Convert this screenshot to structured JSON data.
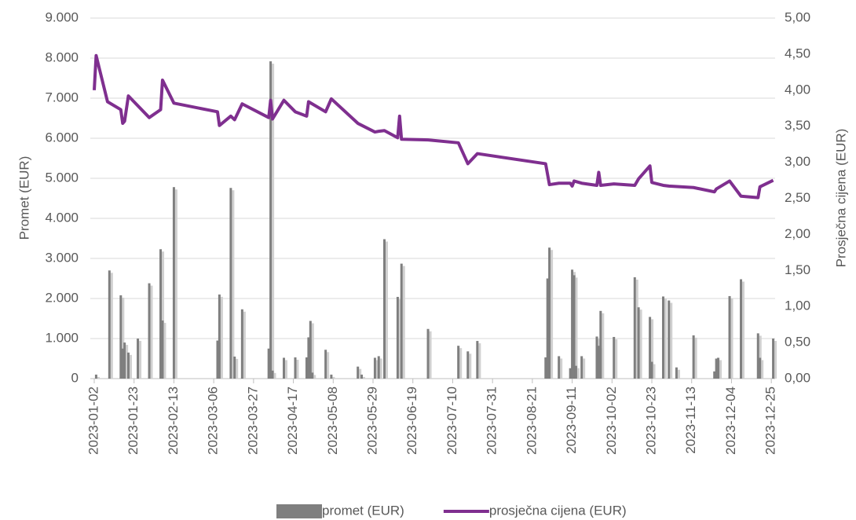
{
  "chart_data": {
    "type": "bar",
    "y_label": "Promet (EUR)",
    "y2_label": "Prosječna cijena (EUR)",
    "grid": true,
    "legend": "bottom",
    "xlim": [
      "2023-01-02",
      "2023-12-27"
    ],
    "xticks": [
      "2023-01-02",
      "2023-01-23",
      "2023-02-13",
      "2023-03-06",
      "2023-03-27",
      "2023-04-17",
      "2023-05-08",
      "2023-05-29",
      "2023-06-19",
      "2023-07-10",
      "2023-07-31",
      "2023-08-21",
      "2023-09-11",
      "2023-10-02",
      "2023-10-23",
      "2023-11-13",
      "2023-12-04",
      "2023-12-25"
    ],
    "ylim": [
      0,
      9000
    ],
    "yticks": [
      {
        "value": 0,
        "label": "0"
      },
      {
        "value": 1000,
        "label": "1.000"
      },
      {
        "value": 2000,
        "label": "2.000"
      },
      {
        "value": 3000,
        "label": "3.000"
      },
      {
        "value": 4000,
        "label": "4.000"
      },
      {
        "value": 5000,
        "label": "5.000"
      },
      {
        "value": 6000,
        "label": "6.000"
      },
      {
        "value": 7000,
        "label": "7.000"
      },
      {
        "value": 8000,
        "label": "8.000"
      },
      {
        "value": 9000,
        "label": "9.000"
      }
    ],
    "y2lim": [
      0,
      5
    ],
    "y2ticks": [
      {
        "value": 0,
        "label": "0,00"
      },
      {
        "value": 0.5,
        "label": "0,50"
      },
      {
        "value": 1,
        "label": "1,00"
      },
      {
        "value": 1.5,
        "label": "1,50"
      },
      {
        "value": 2,
        "label": "2,00"
      },
      {
        "value": 2.5,
        "label": "2,50"
      },
      {
        "value": 3,
        "label": "3,00"
      },
      {
        "value": 3.5,
        "label": "3,50"
      },
      {
        "value": 4,
        "label": "4,00"
      },
      {
        "value": 4.5,
        "label": "4,50"
      },
      {
        "value": 5,
        "label": "5,00"
      }
    ],
    "series": [
      {
        "name": "promet (EUR)",
        "type": "bar",
        "color": "#7f7f7f",
        "x": [
          "2023-01-03",
          "2023-01-10",
          "2023-01-16",
          "2023-01-17",
          "2023-01-18",
          "2023-01-20",
          "2023-01-25",
          "2023-01-31",
          "2023-02-06",
          "2023-02-07",
          "2023-02-13",
          "2023-03-08",
          "2023-03-09",
          "2023-03-15",
          "2023-03-17",
          "2023-03-21",
          "2023-04-04",
          "2023-04-05",
          "2023-04-06",
          "2023-04-12",
          "2023-04-18",
          "2023-04-24",
          "2023-04-25",
          "2023-04-26",
          "2023-04-27",
          "2023-05-04",
          "2023-05-07",
          "2023-05-21",
          "2023-05-23",
          "2023-05-30",
          "2023-06-01",
          "2023-06-04",
          "2023-06-11",
          "2023-06-13",
          "2023-06-27",
          "2023-07-13",
          "2023-07-18",
          "2023-07-23",
          "2023-08-28",
          "2023-08-29",
          "2023-08-30",
          "2023-09-04",
          "2023-09-10",
          "2023-09-11",
          "2023-09-12",
          "2023-09-13",
          "2023-09-16",
          "2023-09-24",
          "2023-09-25",
          "2023-09-26",
          "2023-10-03",
          "2023-10-14",
          "2023-10-16",
          "2023-10-22",
          "2023-10-23",
          "2023-10-29",
          "2023-11-01",
          "2023-11-05",
          "2023-11-14",
          "2023-11-25",
          "2023-11-26",
          "2023-11-27",
          "2023-12-03",
          "2023-12-09",
          "2023-12-18",
          "2023-12-19",
          "2023-12-26"
        ],
        "values": [
          100,
          2700,
          2080,
          750,
          900,
          650,
          1000,
          2380,
          3230,
          1450,
          4780,
          950,
          2100,
          4760,
          550,
          1730,
          750,
          7920,
          200,
          520,
          530,
          530,
          1030,
          1440,
          150,
          720,
          100,
          300,
          100,
          520,
          560,
          3480,
          2040,
          2870,
          1240,
          820,
          680,
          940,
          530,
          2500,
          3270,
          560,
          260,
          2720,
          2580,
          320,
          560,
          1050,
          820,
          1690,
          1040,
          2530,
          1780,
          1540,
          420,
          2050,
          1950,
          280,
          1080,
          180,
          500,
          520,
          2060,
          2480,
          1130,
          520,
          1000
        ]
      },
      {
        "name": "prosječna cijena (EUR)",
        "type": "line",
        "axis": "y2",
        "color": "#7f2f8f",
        "x": [
          "2023-01-02",
          "2023-01-03",
          "2023-01-09",
          "2023-01-16",
          "2023-01-17",
          "2023-01-18",
          "2023-01-20",
          "2023-01-31",
          "2023-02-06",
          "2023-02-07",
          "2023-02-13",
          "2023-03-08",
          "2023-03-09",
          "2023-03-15",
          "2023-03-17",
          "2023-03-21",
          "2023-04-04",
          "2023-04-05",
          "2023-04-06",
          "2023-04-12",
          "2023-04-18",
          "2023-04-24",
          "2023-04-25",
          "2023-05-04",
          "2023-05-07",
          "2023-05-21",
          "2023-05-30",
          "2023-06-01",
          "2023-06-04",
          "2023-06-11",
          "2023-06-12",
          "2023-06-13",
          "2023-06-27",
          "2023-07-13",
          "2023-07-18",
          "2023-07-23",
          "2023-08-28",
          "2023-08-30",
          "2023-09-04",
          "2023-09-10",
          "2023-09-11",
          "2023-09-12",
          "2023-09-16",
          "2023-09-24",
          "2023-09-25",
          "2023-09-26",
          "2023-10-03",
          "2023-10-14",
          "2023-10-16",
          "2023-10-22",
          "2023-10-23",
          "2023-10-29",
          "2023-11-01",
          "2023-11-14",
          "2023-11-25",
          "2023-11-26",
          "2023-12-03",
          "2023-12-09",
          "2023-12-18",
          "2023-12-19",
          "2023-12-26"
        ],
        "values": [
          4.0,
          4.48,
          3.84,
          3.73,
          3.54,
          3.57,
          3.92,
          3.62,
          3.73,
          4.14,
          3.82,
          3.7,
          3.51,
          3.64,
          3.59,
          3.81,
          3.62,
          3.86,
          3.6,
          3.86,
          3.7,
          3.64,
          3.84,
          3.7,
          3.88,
          3.54,
          3.42,
          3.43,
          3.44,
          3.34,
          3.64,
          3.32,
          3.31,
          3.27,
          2.98,
          3.12,
          2.98,
          2.69,
          2.71,
          2.71,
          2.67,
          2.74,
          2.71,
          2.68,
          2.86,
          2.68,
          2.7,
          2.68,
          2.77,
          2.95,
          2.72,
          2.68,
          2.67,
          2.65,
          2.59,
          2.63,
          2.74,
          2.53,
          2.51,
          2.66,
          2.75
        ]
      }
    ]
  }
}
